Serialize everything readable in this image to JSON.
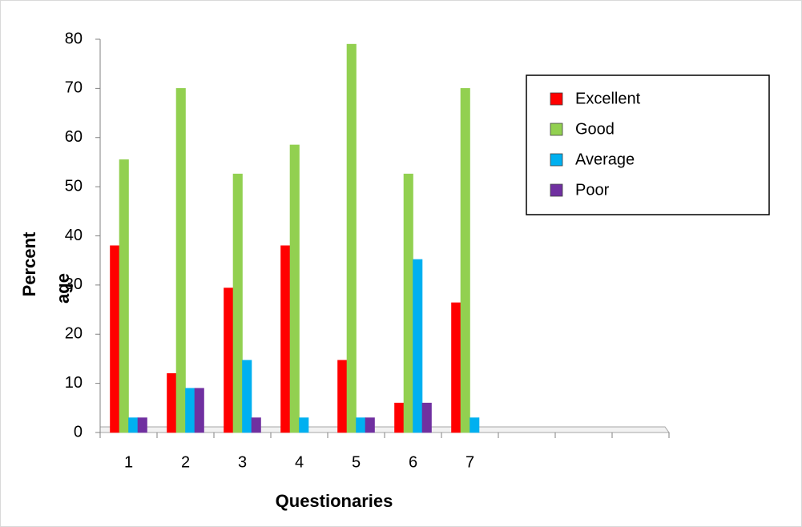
{
  "chart_data": {
    "type": "bar",
    "x_label": "Questionaries",
    "y_label": [
      "Percent",
      "age"
    ],
    "categories": [
      "1",
      "2",
      "3",
      "4",
      "5",
      "6",
      "7",
      null,
      null,
      null
    ],
    "series": [
      {
        "name": "Excellent",
        "color": "#ff0000",
        "values": [
          38,
          12,
          29.4,
          38,
          14.7,
          6,
          26.4,
          null,
          null,
          null
        ]
      },
      {
        "name": "Good",
        "color": "#92d050",
        "values": [
          55.5,
          70,
          52.6,
          58.5,
          79,
          52.6,
          70,
          null,
          null,
          null
        ]
      },
      {
        "name": "Average",
        "color": "#00b0f0",
        "values": [
          3,
          9,
          14.7,
          3,
          3,
          35.2,
          3,
          null,
          null,
          null
        ]
      },
      {
        "name": "Poor",
        "color": "#7030a0",
        "values": [
          3,
          9,
          3,
          0,
          3,
          6,
          0,
          null,
          null,
          null
        ]
      }
    ],
    "ylim": [
      0,
      80
    ],
    "yticks": [
      0,
      10,
      20,
      30,
      40,
      50,
      60,
      70,
      80
    ],
    "grid": false,
    "legend": "upper-right"
  }
}
